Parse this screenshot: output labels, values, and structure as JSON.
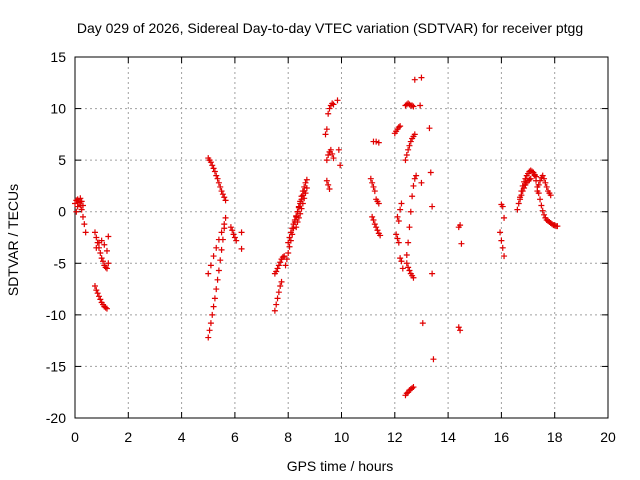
{
  "chart_data": {
    "type": "scatter",
    "title": "Day 029 of 2026, Sidereal Day-to-day VTEC variation (SDTVAR) for receiver ptgg",
    "xlabel": "GPS time / hours",
    "ylabel": "SDTVAR / TECUs",
    "xlim": [
      0,
      20
    ],
    "ylim": [
      -20,
      15
    ],
    "xticks": [
      0,
      2,
      4,
      6,
      8,
      10,
      12,
      14,
      16,
      18,
      20
    ],
    "yticks": [
      -20,
      -15,
      -10,
      -5,
      0,
      5,
      10,
      15
    ],
    "grid": true,
    "marker": "+",
    "color": "#e00000",
    "segments": [
      {
        "x": [
          0.0,
          0.05,
          0.1,
          0.15,
          0.2,
          0.25,
          0.3,
          0.35,
          0.4
        ],
        "y": [
          0.8,
          1.1,
          1.2,
          1.0,
          0.6,
          0.2,
          -0.5,
          -1.2,
          -2.0
        ]
      },
      {
        "x": [
          0.05,
          0.1,
          0.15,
          0.2,
          0.25,
          0.3
        ],
        "y": [
          0.0,
          0.5,
          0.9,
          1.3,
          1.0,
          0.6
        ]
      },
      {
        "x": [
          0.75,
          0.8,
          0.85,
          0.9,
          0.95,
          1.0,
          1.05,
          1.1,
          1.15,
          1.2,
          1.25
        ],
        "y": [
          -2.0,
          -2.5,
          -3.0,
          -3.5,
          -4.0,
          -4.5,
          -4.8,
          -5.2,
          -5.4,
          -5.5,
          -5.0
        ]
      },
      {
        "x": [
          0.8,
          0.9,
          1.0,
          1.1,
          1.2,
          1.25
        ],
        "y": [
          -3.5,
          -3.0,
          -2.8,
          -3.2,
          -3.8,
          -2.4
        ]
      },
      {
        "x": [
          0.75,
          0.8,
          0.85,
          0.9,
          0.95,
          1.0,
          1.05,
          1.1,
          1.15,
          1.2
        ],
        "y": [
          -7.2,
          -7.6,
          -7.9,
          -8.2,
          -8.5,
          -8.8,
          -9.0,
          -9.2,
          -9.3,
          -9.4
        ]
      },
      {
        "x": [
          5.0,
          5.05,
          5.1,
          5.15,
          5.2,
          5.25,
          5.3,
          5.35,
          5.4,
          5.45,
          5.5,
          5.55,
          5.6,
          5.65
        ],
        "y": [
          5.2,
          5.0,
          4.8,
          4.5,
          4.2,
          3.9,
          3.5,
          3.2,
          2.8,
          2.4,
          2.0,
          1.7,
          1.4,
          1.1
        ]
      },
      {
        "x": [
          5.0,
          5.05,
          5.1,
          5.15,
          5.2,
          5.25,
          5.3,
          5.35,
          5.4,
          5.45,
          5.5,
          5.55,
          5.6
        ],
        "y": [
          -12.2,
          -11.5,
          -10.8,
          -10.0,
          -9.2,
          -8.4,
          -7.5,
          -6.6,
          -5.7,
          -4.7,
          -3.7,
          -2.7,
          -1.6
        ]
      },
      {
        "x": [
          5.0,
          5.1,
          5.2,
          5.3,
          5.4,
          5.5,
          5.6,
          5.65
        ],
        "y": [
          -6.0,
          -5.2,
          -4.3,
          -3.5,
          -2.7,
          -2.0,
          -1.2,
          -0.6
        ]
      },
      {
        "x": [
          5.85,
          5.9,
          5.95,
          6.0,
          6.05
        ],
        "y": [
          -1.5,
          -1.8,
          -2.2,
          -2.5,
          -2.8
        ]
      },
      {
        "x": [
          6.25,
          6.25
        ],
        "y": [
          -2.0,
          -3.6
        ]
      },
      {
        "x": [
          7.5,
          7.55,
          7.6,
          7.65,
          7.7,
          7.75
        ],
        "y": [
          -9.6,
          -9.0,
          -8.4,
          -7.8,
          -7.2,
          -6.8
        ]
      },
      {
        "x": [
          7.5,
          7.55,
          7.6,
          7.65,
          7.7,
          7.75,
          7.8,
          7.85
        ],
        "y": [
          -6.0,
          -5.8,
          -5.5,
          -5.2,
          -4.9,
          -4.6,
          -4.4,
          -4.3
        ]
      },
      {
        "x": [
          7.9,
          7.95,
          8.0,
          8.05,
          8.1,
          8.15,
          8.2,
          8.25,
          8.3,
          8.35,
          8.4,
          8.45,
          8.5,
          8.55,
          8.6,
          8.65,
          8.7
        ],
        "y": [
          -5.2,
          -4.6,
          -4.0,
          -3.4,
          -2.8,
          -2.2,
          -1.6,
          -1.0,
          -0.5,
          0.0,
          0.5,
          1.0,
          1.5,
          2.0,
          2.4,
          2.8,
          3.1
        ]
      },
      {
        "x": [
          8.0,
          8.05,
          8.1,
          8.15,
          8.2,
          8.25,
          8.3,
          8.35,
          8.4,
          8.45,
          8.5,
          8.55,
          8.6
        ],
        "y": [
          -3.0,
          -2.5,
          -2.0,
          -1.6,
          -1.2,
          -0.8,
          -0.4,
          0.0,
          0.4,
          0.8,
          1.2,
          1.6,
          2.0
        ]
      },
      {
        "x": [
          8.3,
          8.35,
          8.4,
          8.45,
          8.5,
          8.55,
          8.6,
          8.65,
          8.7
        ],
        "y": [
          -1.5,
          -1.0,
          -0.6,
          -0.2,
          0.3,
          0.8,
          1.3,
          1.8,
          2.3
        ]
      },
      {
        "x": [
          9.4,
          9.45,
          9.5,
          9.55,
          9.6,
          9.65,
          9.7
        ],
        "y": [
          7.5,
          8.0,
          9.5,
          10.0,
          10.3,
          10.5,
          10.4
        ]
      },
      {
        "x": [
          9.45,
          9.5,
          9.55,
          9.6,
          9.65,
          9.7
        ],
        "y": [
          5.0,
          5.5,
          5.8,
          6.0,
          5.6,
          5.2
        ]
      },
      {
        "x": [
          9.45,
          9.5,
          9.55
        ],
        "y": [
          3.0,
          2.6,
          2.2
        ]
      },
      {
        "x": [
          9.85,
          9.9,
          9.95
        ],
        "y": [
          10.8,
          6.0,
          4.5
        ]
      },
      {
        "x": [
          11.1,
          11.15,
          11.2,
          11.25,
          11.3,
          11.35,
          11.4
        ],
        "y": [
          3.2,
          2.8,
          2.4,
          2.0,
          1.2,
          1.0,
          0.8
        ]
      },
      {
        "x": [
          11.15,
          11.2,
          11.25,
          11.3,
          11.35,
          11.4,
          11.45
        ],
        "y": [
          -0.5,
          -0.8,
          -1.2,
          -1.5,
          -1.8,
          -2.1,
          -2.3
        ]
      },
      {
        "x": [
          11.2,
          11.3,
          11.4
        ],
        "y": [
          6.8,
          6.8,
          6.7
        ]
      },
      {
        "x": [
          12.0,
          12.05,
          12.1,
          12.15,
          12.2
        ],
        "y": [
          7.6,
          7.8,
          8.0,
          8.2,
          8.3
        ]
      },
      {
        "x": [
          12.05,
          12.1,
          12.15,
          12.2,
          12.25,
          12.3
        ],
        "y": [
          -2.2,
          -2.6,
          -3.0,
          -4.5,
          -4.8,
          -5.5
        ]
      },
      {
        "x": [
          12.1,
          12.15,
          12.2,
          12.25
        ],
        "y": [
          -0.5,
          -0.9,
          0.2,
          0.8
        ]
      },
      {
        "x": [
          12.4,
          12.45,
          12.5,
          12.55,
          12.6,
          12.65,
          12.7,
          12.75
        ],
        "y": [
          5.0,
          5.5,
          6.0,
          6.4,
          6.8,
          7.1,
          7.3,
          7.5
        ]
      },
      {
        "x": [
          12.4,
          12.45,
          12.5,
          12.55,
          12.6,
          12.65,
          12.7
        ],
        "y": [
          10.3,
          10.4,
          10.5,
          10.4,
          10.3,
          10.3,
          10.2
        ]
      },
      {
        "x": [
          12.45,
          12.5,
          12.55,
          12.6,
          12.65,
          12.7,
          12.75
        ],
        "y": [
          -4.2,
          -3.0,
          -1.5,
          0.0,
          1.5,
          2.5,
          3.2
        ]
      },
      {
        "x": [
          12.45,
          12.5,
          12.55,
          12.6,
          12.65,
          12.7
        ],
        "y": [
          -5.0,
          -5.4,
          -5.7,
          -6.0,
          -6.2,
          -6.4
        ]
      },
      {
        "x": [
          12.4,
          12.45,
          12.5,
          12.55,
          12.6,
          12.65,
          12.7
        ],
        "y": [
          -17.8,
          -17.6,
          -17.5,
          -17.3,
          -17.2,
          -17.1,
          -17.0
        ]
      },
      {
        "x": [
          12.75,
          12.8
        ],
        "y": [
          12.8,
          3.5
        ]
      },
      {
        "x": [
          12.95,
          13.0,
          13.0,
          13.05
        ],
        "y": [
          10.3,
          13.0,
          2.8,
          -10.8
        ]
      },
      {
        "x": [
          13.3,
          13.35,
          13.4,
          13.4,
          13.45
        ],
        "y": [
          8.1,
          3.8,
          0.5,
          -6.0,
          -14.3
        ]
      },
      {
        "x": [
          14.4,
          14.45,
          14.5
        ],
        "y": [
          -1.5,
          -1.3,
          -3.1
        ]
      },
      {
        "x": [
          14.4,
          14.45
        ],
        "y": [
          -11.2,
          -11.5
        ]
      },
      {
        "x": [
          16.0,
          16.05,
          16.1
        ],
        "y": [
          0.7,
          0.5,
          -0.6
        ]
      },
      {
        "x": [
          15.95,
          16.0,
          16.05,
          16.1
        ],
        "y": [
          -2.0,
          -2.8,
          -3.5,
          -4.3
        ]
      },
      {
        "x": [
          16.6,
          16.65,
          16.7,
          16.75,
          16.8,
          16.85,
          16.9,
          16.95,
          17.0,
          17.05,
          17.1,
          17.15,
          17.2,
          17.25,
          17.3
        ],
        "y": [
          0.2,
          0.8,
          1.4,
          2.0,
          2.5,
          2.9,
          3.2,
          3.5,
          3.7,
          3.9,
          4.0,
          3.9,
          3.8,
          3.6,
          3.4
        ]
      },
      {
        "x": [
          16.7,
          16.75,
          16.8,
          16.85,
          16.9,
          16.95,
          17.0,
          17.05,
          17.1
        ],
        "y": [
          1.2,
          1.6,
          2.0,
          2.3,
          2.6,
          2.8,
          3.0,
          3.1,
          3.2
        ]
      },
      {
        "x": [
          17.25,
          17.3,
          17.35,
          17.4,
          17.45,
          17.5,
          17.55,
          17.6,
          17.65,
          17.7,
          17.75,
          17.8,
          17.85,
          17.9,
          17.95,
          18.0,
          18.05,
          18.1
        ],
        "y": [
          3.5,
          3.0,
          2.4,
          1.8,
          1.2,
          0.6,
          0.1,
          -0.3,
          -0.6,
          -0.8,
          -0.9,
          -1.0,
          -1.1,
          -1.2,
          -1.3,
          -1.3,
          -1.4,
          -1.4
        ]
      },
      {
        "x": [
          17.35,
          17.4,
          17.45,
          17.5,
          17.55,
          17.6,
          17.65,
          17.7,
          17.75,
          17.8,
          17.85
        ],
        "y": [
          2.0,
          2.6,
          3.0,
          3.3,
          3.5,
          3.2,
          2.8,
          2.4,
          2.0,
          1.8,
          1.6
        ]
      }
    ]
  }
}
